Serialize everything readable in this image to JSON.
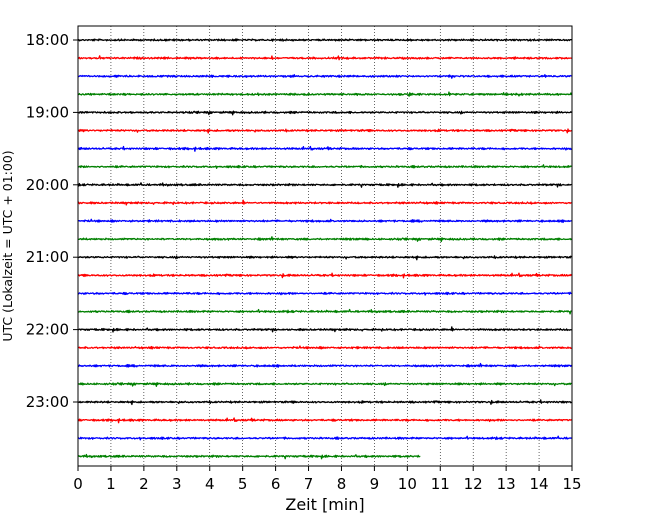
{
  "chart_data": {
    "type": "line",
    "title": "",
    "xlabel": "Zeit  [min]",
    "ylabel": "UTC (Lokalzeit = UTC + 01:00)",
    "xlim": [
      0,
      15
    ],
    "x_ticks": [
      "0",
      "1",
      "2",
      "3",
      "4",
      "5",
      "6",
      "7",
      "8",
      "9",
      "10",
      "11",
      "12",
      "13",
      "14",
      "15"
    ],
    "y_ticks": [
      {
        "label": "18:00",
        "row": 0
      },
      {
        "label": "19:00",
        "row": 4
      },
      {
        "label": "20:00",
        "row": 8
      },
      {
        "label": "21:00",
        "row": 12
      },
      {
        "label": "22:00",
        "row": 16
      },
      {
        "label": "23:00",
        "row": 20
      }
    ],
    "grid": "vertical dotted",
    "colors": [
      "#000000",
      "#ff0000",
      "#0000ff",
      "#008000"
    ],
    "series": [
      {
        "start": "18:00",
        "minutes": 15,
        "color": "#000000"
      },
      {
        "start": "18:15",
        "minutes": 15,
        "color": "#ff0000"
      },
      {
        "start": "18:30",
        "minutes": 15,
        "color": "#0000ff"
      },
      {
        "start": "18:45",
        "minutes": 15,
        "color": "#008000"
      },
      {
        "start": "19:00",
        "minutes": 15,
        "color": "#000000"
      },
      {
        "start": "19:15",
        "minutes": 15,
        "color": "#ff0000"
      },
      {
        "start": "19:30",
        "minutes": 15,
        "color": "#0000ff"
      },
      {
        "start": "19:45",
        "minutes": 15,
        "color": "#008000"
      },
      {
        "start": "20:00",
        "minutes": 15,
        "color": "#000000"
      },
      {
        "start": "20:15",
        "minutes": 15,
        "color": "#ff0000"
      },
      {
        "start": "20:30",
        "minutes": 15,
        "color": "#0000ff"
      },
      {
        "start": "20:45",
        "minutes": 15,
        "color": "#008000"
      },
      {
        "start": "21:00",
        "minutes": 15,
        "color": "#000000"
      },
      {
        "start": "21:15",
        "minutes": 15,
        "color": "#ff0000"
      },
      {
        "start": "21:30",
        "minutes": 15,
        "color": "#0000ff"
      },
      {
        "start": "21:45",
        "minutes": 15,
        "color": "#008000"
      },
      {
        "start": "22:00",
        "minutes": 15,
        "color": "#000000"
      },
      {
        "start": "22:15",
        "minutes": 15,
        "color": "#ff0000"
      },
      {
        "start": "22:30",
        "minutes": 15,
        "color": "#0000ff"
      },
      {
        "start": "22:45",
        "minutes": 15,
        "color": "#008000"
      },
      {
        "start": "23:00",
        "minutes": 15,
        "color": "#000000"
      },
      {
        "start": "23:15",
        "minutes": 15,
        "color": "#ff0000"
      },
      {
        "start": "23:30",
        "minutes": 15,
        "color": "#0000ff"
      },
      {
        "start": "23:45",
        "minutes": 10.4,
        "color": "#008000"
      }
    ]
  }
}
